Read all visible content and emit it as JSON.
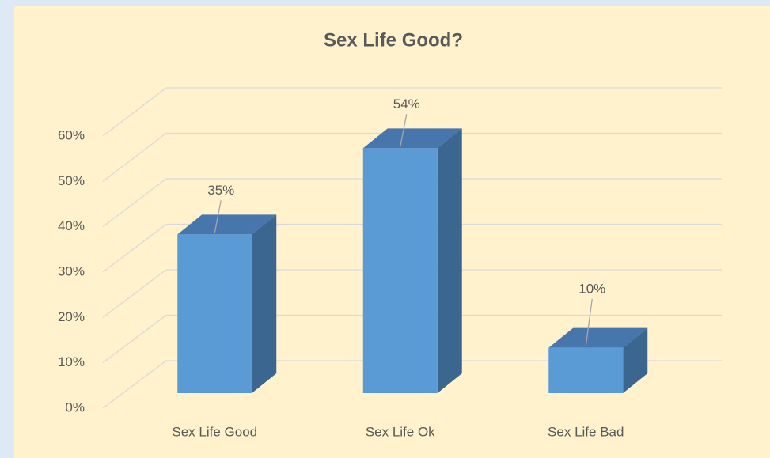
{
  "chart_data": {
    "type": "bar3d",
    "title": "Sex Life Good?",
    "categories": [
      "Sex Life Good",
      "Sex Life Ok",
      "Sex Life Bad"
    ],
    "values": [
      35,
      54,
      10
    ],
    "value_labels": [
      "35%",
      "54%",
      "10%"
    ],
    "color": "#5b9bd5",
    "ylim": [
      0,
      60
    ],
    "yticks": [
      {
        "value": 0,
        "label": "0%"
      },
      {
        "value": 10,
        "label": "10%"
      },
      {
        "value": 20,
        "label": "20%"
      },
      {
        "value": 30,
        "label": "30%"
      },
      {
        "value": 40,
        "label": "40%"
      },
      {
        "value": 50,
        "label": "50%"
      },
      {
        "value": 60,
        "label": "60%"
      }
    ],
    "grid": true
  }
}
